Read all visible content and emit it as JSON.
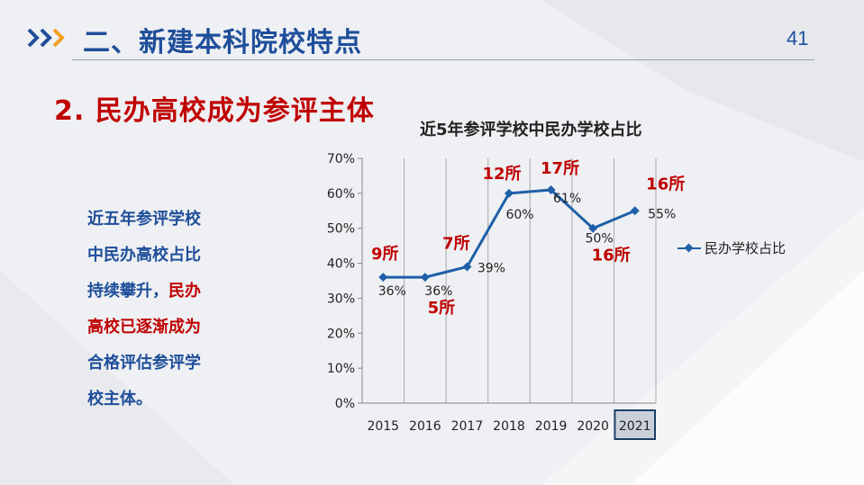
{
  "header": {
    "section_title": "二、新建本科院校特点",
    "page_number": "41"
  },
  "subtitle": "2. 民办高校成为参评主体",
  "side_text": {
    "line1": "近五年参评学校",
    "line2": "中民办高校占比",
    "line3_a": "持续攀升，",
    "line3_b": "民办",
    "line4": "高校已逐渐成为",
    "line5": "合格评估参评学",
    "line6": "校主体。"
  },
  "colors": {
    "accent_blue": "#1f4e9a",
    "accent_red": "#c00000",
    "series_blue": "#1f5fa8"
  },
  "chart_data": {
    "type": "line",
    "title": "近5年参评学校中民办学校占比",
    "categories": [
      "2015",
      "2016",
      "2017",
      "2018",
      "2019",
      "2020",
      "2021"
    ],
    "series": [
      {
        "name": "民办学校占比",
        "values": [
          36,
          36,
          39,
          60,
          61,
          50,
          55
        ]
      }
    ],
    "value_labels": [
      "36%",
      "36%",
      "39%",
      "60%",
      "61%",
      "50%",
      "55%"
    ],
    "count_labels": [
      "9所",
      "5所",
      "7所",
      "12所",
      "17所",
      "16所",
      "16所"
    ],
    "y_ticks": [
      "0%",
      "10%",
      "20%",
      "30%",
      "40%",
      "50%",
      "60%",
      "70%"
    ],
    "ylim": [
      0,
      70
    ],
    "highlighted_category": "2021",
    "grid": "vertical",
    "legend": "right"
  }
}
